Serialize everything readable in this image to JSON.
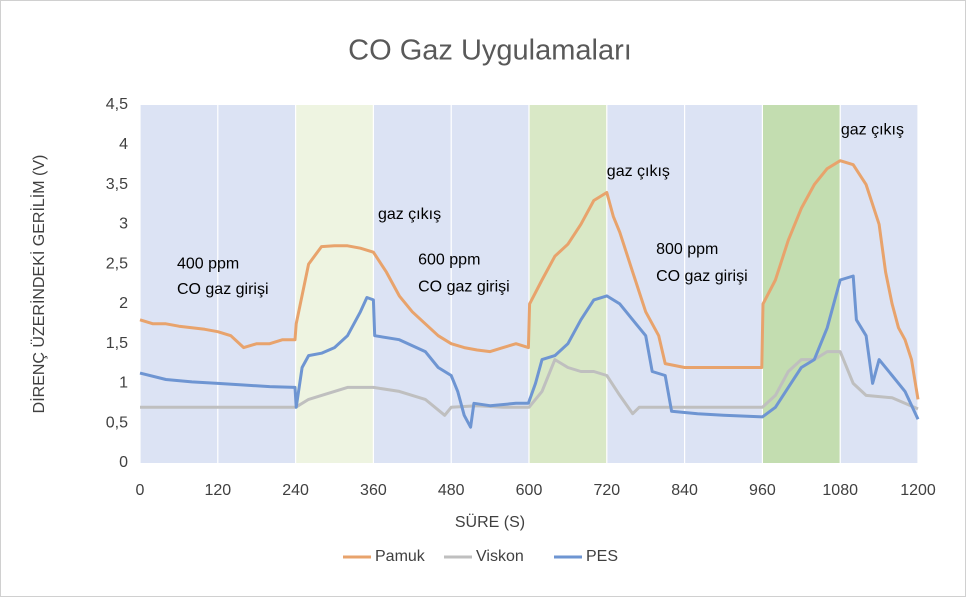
{
  "chart_data": {
    "type": "line",
    "title": "CO Gaz Uygulamaları",
    "xlabel": "SÜRE (S)",
    "ylabel": "DİRENÇ ÜZERİNDEKİ GERİLİM (V)",
    "xlim": [
      0,
      1200
    ],
    "ylim": [
      0,
      4.5
    ],
    "xticks": [
      0,
      120,
      240,
      360,
      480,
      600,
      720,
      840,
      960,
      1080,
      1200
    ],
    "yticks": [
      0,
      {
        "value": 0.5,
        "label": "0,5"
      },
      1,
      {
        "value": 1.5,
        "label": "1,5"
      },
      2,
      {
        "value": 2.5,
        "label": "2,5"
      },
      3,
      {
        "value": 3.5,
        "label": "3,5"
      },
      4,
      {
        "value": 4.5,
        "label": "4,5"
      }
    ],
    "grid": true,
    "legend": "bottom",
    "background": "#dce3f4",
    "bands": [
      {
        "x": [
          240,
          360
        ],
        "color": "#eef4e1"
      },
      {
        "x": [
          600,
          720
        ],
        "color": "#d9e8c6"
      },
      {
        "x": [
          960,
          1080
        ],
        "color": "#c3ddb0"
      }
    ],
    "series": [
      {
        "name": "Pamuk",
        "color": "#e8a36c",
        "x": [
          0,
          20,
          40,
          60,
          80,
          100,
          120,
          140,
          160,
          180,
          200,
          220,
          239,
          241,
          260,
          280,
          300,
          320,
          340,
          360,
          380,
          400,
          420,
          440,
          460,
          480,
          500,
          520,
          540,
          560,
          580,
          599,
          601,
          620,
          640,
          660,
          680,
          700,
          720,
          730,
          740,
          760,
          780,
          800,
          810,
          840,
          880,
          920,
          959,
          961,
          980,
          1000,
          1020,
          1040,
          1060,
          1080,
          1100,
          1120,
          1140,
          1150,
          1160,
          1170,
          1180,
          1190,
          1200
        ],
        "values": [
          1.8,
          1.75,
          1.75,
          1.72,
          1.7,
          1.68,
          1.65,
          1.6,
          1.45,
          1.5,
          1.5,
          1.55,
          1.55,
          1.75,
          2.5,
          2.72,
          2.73,
          2.73,
          2.7,
          2.65,
          2.4,
          2.1,
          1.9,
          1.75,
          1.6,
          1.5,
          1.45,
          1.42,
          1.4,
          1.45,
          1.5,
          1.45,
          2.0,
          2.3,
          2.6,
          2.75,
          3.0,
          3.3,
          3.4,
          3.1,
          2.9,
          2.4,
          1.9,
          1.6,
          1.25,
          1.2,
          1.2,
          1.2,
          1.2,
          2.0,
          2.3,
          2.8,
          3.2,
          3.5,
          3.7,
          3.8,
          3.75,
          3.5,
          3.0,
          2.4,
          2.0,
          1.7,
          1.55,
          1.3,
          0.8
        ]
      },
      {
        "name": "Viskon",
        "color": "#bfbfbf",
        "x": [
          0,
          120,
          240,
          260,
          280,
          300,
          320,
          340,
          360,
          400,
          440,
          470,
          480,
          520,
          560,
          600,
          620,
          640,
          660,
          680,
          700,
          720,
          740,
          760,
          770,
          800,
          840,
          900,
          960,
          980,
          1000,
          1020,
          1040,
          1060,
          1080,
          1100,
          1120,
          1160,
          1200
        ],
        "values": [
          0.7,
          0.7,
          0.7,
          0.8,
          0.85,
          0.9,
          0.95,
          0.95,
          0.95,
          0.9,
          0.8,
          0.6,
          0.7,
          0.72,
          0.7,
          0.7,
          0.9,
          1.3,
          1.2,
          1.15,
          1.15,
          1.1,
          0.85,
          0.62,
          0.7,
          0.7,
          0.7,
          0.7,
          0.7,
          0.85,
          1.15,
          1.3,
          1.3,
          1.4,
          1.4,
          1.0,
          0.85,
          0.82,
          0.68
        ]
      },
      {
        "name": "PES",
        "color": "#6e95d2",
        "x": [
          0,
          40,
          80,
          120,
          160,
          200,
          239,
          241,
          250,
          260,
          280,
          300,
          320,
          340,
          350,
          360,
          362,
          400,
          440,
          460,
          480,
          490,
          500,
          510,
          515,
          540,
          580,
          599,
          610,
          620,
          640,
          660,
          680,
          700,
          720,
          740,
          760,
          780,
          790,
          810,
          820,
          860,
          900,
          960,
          980,
          1000,
          1020,
          1040,
          1060,
          1080,
          1100,
          1105,
          1120,
          1130,
          1140,
          1160,
          1180,
          1200
        ],
        "values": [
          1.13,
          1.05,
          1.02,
          1.0,
          0.98,
          0.96,
          0.95,
          0.7,
          1.2,
          1.35,
          1.38,
          1.45,
          1.6,
          1.9,
          2.08,
          2.05,
          1.6,
          1.55,
          1.4,
          1.2,
          1.1,
          0.9,
          0.6,
          0.45,
          0.75,
          0.72,
          0.75,
          0.75,
          1.0,
          1.3,
          1.35,
          1.5,
          1.8,
          2.05,
          2.1,
          2.0,
          1.8,
          1.6,
          1.15,
          1.1,
          0.65,
          0.62,
          0.6,
          0.58,
          0.7,
          0.95,
          1.2,
          1.3,
          1.7,
          2.3,
          2.35,
          1.8,
          1.6,
          1.0,
          1.3,
          1.1,
          0.9,
          0.55
        ]
      }
    ],
    "annotations": [
      {
        "text": "400 ppm",
        "x": 57,
        "y": 2.5
      },
      {
        "text": "CO gaz girişi",
        "x": 57,
        "y": 2.18
      },
      {
        "text": "gaz çıkış",
        "x": 367,
        "y": 3.12
      },
      {
        "text": "600 ppm",
        "x": 429,
        "y": 2.55
      },
      {
        "text": "CO gaz girişi",
        "x": 429,
        "y": 2.21
      },
      {
        "text": "gaz çıkış",
        "x": 720,
        "y": 3.66
      },
      {
        "text": "800 ppm",
        "x": 796,
        "y": 2.68
      },
      {
        "text": "CO gaz girişi",
        "x": 796,
        "y": 2.34
      },
      {
        "text": "gaz çıkış",
        "x": 1081,
        "y": 4.18
      }
    ]
  }
}
